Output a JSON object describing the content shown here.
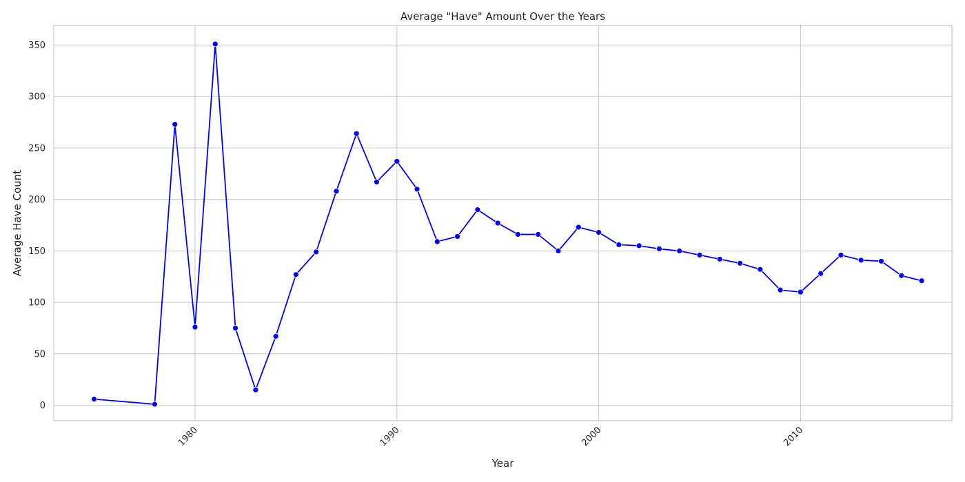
{
  "chart_data": {
    "type": "line",
    "title": "Average \"Have\" Amount Over the Years",
    "xlabel": "Year",
    "ylabel": "Average Have Count",
    "xlim": [
      1973,
      2017.5
    ],
    "ylim": [
      -15,
      369
    ],
    "x_ticks": [
      1980,
      1990,
      2000,
      2010
    ],
    "x_tick_labels": [
      "1980",
      "1990",
      "2000",
      "2010"
    ],
    "x_tick_rotation_deg": 45,
    "y_ticks": [
      0,
      50,
      100,
      150,
      200,
      250,
      300,
      350
    ],
    "y_tick_labels": [
      "0",
      "50",
      "100",
      "150",
      "200",
      "250",
      "300",
      "350"
    ],
    "grid": true,
    "series": [
      {
        "color": "#0000ff",
        "marker": "circle",
        "x": [
          1975,
          1978,
          1979,
          1980,
          1981,
          1982,
          1983,
          1984,
          1985,
          1986,
          1987,
          1988,
          1989,
          1990,
          1991,
          1992,
          1993,
          1994,
          1995,
          1996,
          1997,
          1998,
          1999,
          2000,
          2001,
          2002,
          2003,
          2004,
          2005,
          2006,
          2007,
          2008,
          2009,
          2010,
          2011,
          2012,
          2013,
          2014,
          2015,
          2016
        ],
        "values": [
          6,
          1,
          273,
          76,
          351,
          75,
          15,
          67,
          127,
          149,
          208,
          264,
          217,
          237,
          210,
          159,
          164,
          190,
          177,
          166,
          166,
          150,
          173,
          168,
          156,
          155,
          152,
          150,
          146,
          142,
          138,
          132,
          112,
          110,
          128,
          146,
          141,
          140,
          126,
          121
        ]
      }
    ]
  }
}
